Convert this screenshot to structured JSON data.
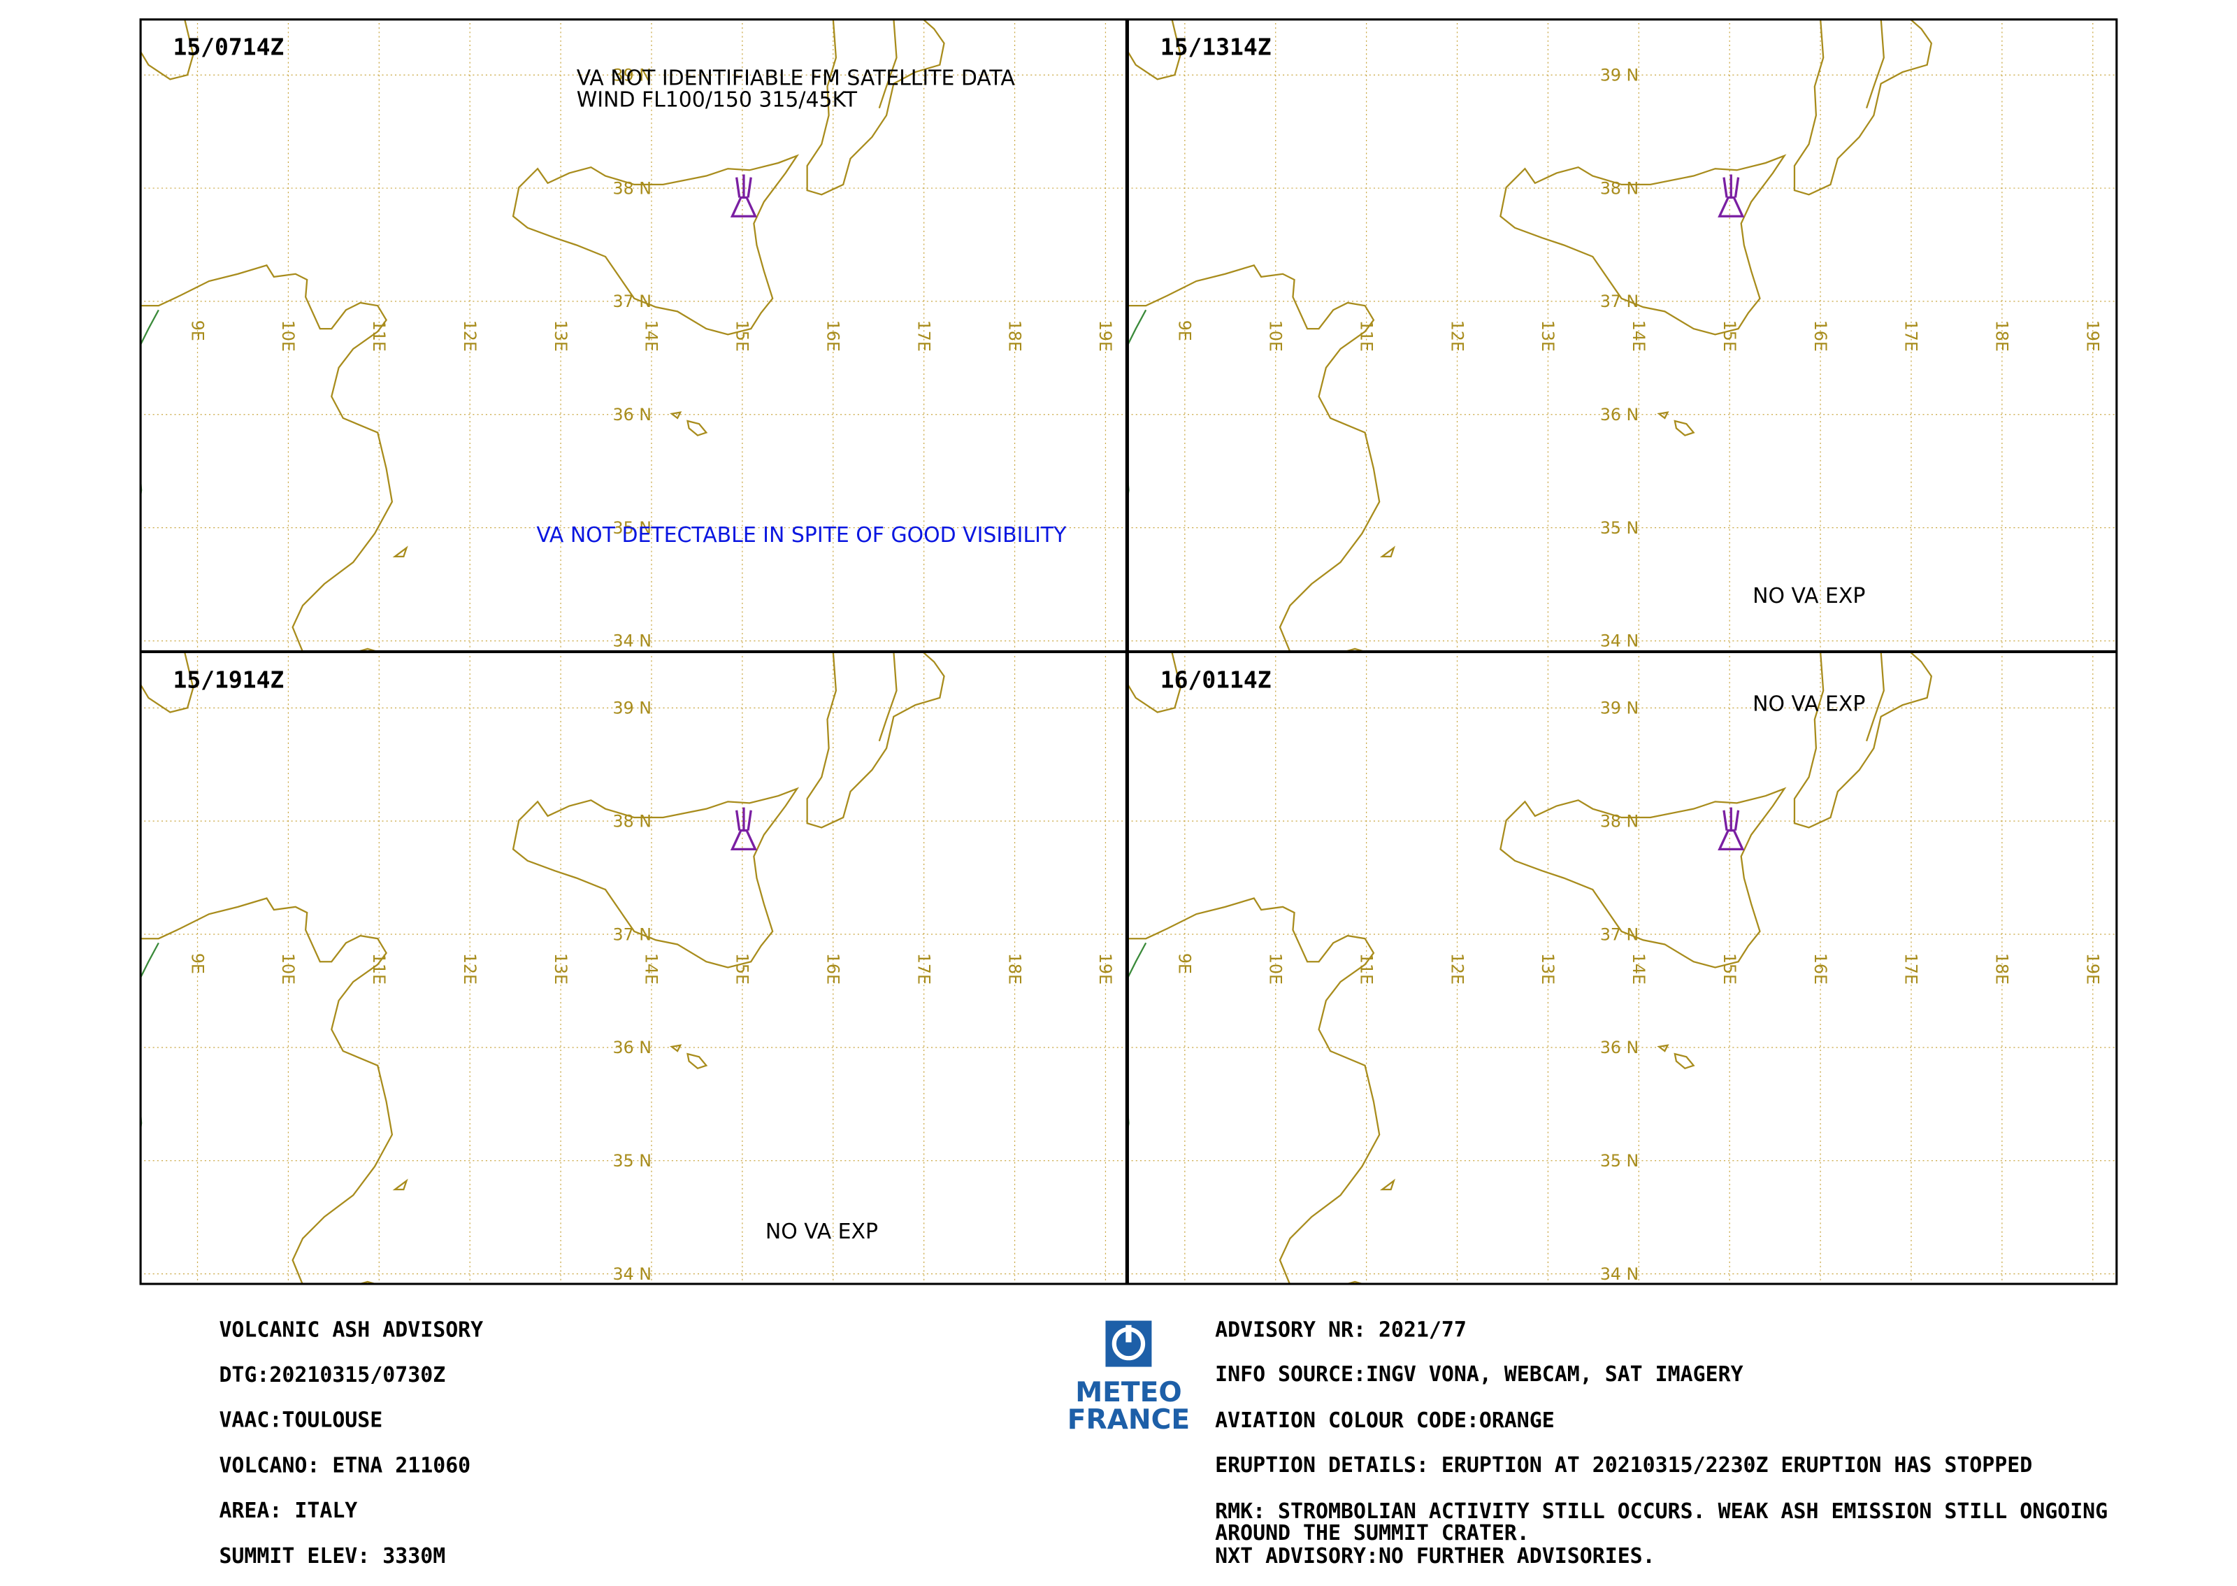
{
  "panels": [
    {
      "time": "15/0714Z",
      "notes": [
        "VA NOT IDENTIFIABLE FM SATELLITE DATA",
        "WIND FL100/150 315/45KT",
        "VA NOT DETECTABLE IN SPITE OF GOOD VISIBILITY"
      ]
    },
    {
      "time": "15/1314Z",
      "notes": [
        "NO VA EXP"
      ]
    },
    {
      "time": "15/1914Z",
      "notes": [
        "NO VA EXP"
      ]
    },
    {
      "time": "16/0114Z",
      "notes": [
        "NO VA EXP"
      ]
    }
  ],
  "grid": {
    "lat_labels": [
      "39 N",
      "38 N",
      "37 N",
      "36 N",
      "35 N",
      "34 N"
    ],
    "lon_labels": [
      "9E",
      "10E",
      "11E",
      "12E",
      "13E",
      "14E",
      "15E",
      "16E",
      "17E",
      "18E",
      "19E"
    ]
  },
  "advisory": {
    "left": [
      "VOLCANIC ASH ADVISORY",
      "DTG:20210315/0730Z",
      "VAAC:TOULOUSE",
      "VOLCANO: ETNA 211060",
      "AREA: ITALY",
      "SUMMIT ELEV: 3330M"
    ],
    "right": [
      "ADVISORY NR: 2021/77",
      "INFO SOURCE:INGV VONA, WEBCAM, SAT IMAGERY",
      "AVIATION COLOUR CODE:ORANGE",
      "ERUPTION DETAILS: ERUPTION AT 20210315/2230Z ERUPTION HAS STOPPED",
      "RMK: STROMBOLIAN ACTIVITY STILL OCCURS. WEAK ASH EMISSION STILL ONGOING",
      "AROUND THE SUMMIT CRATER.",
      "NXT ADVISORY:NO FURTHER ADVISORIES."
    ]
  },
  "logo": [
    "METEO",
    "FRANCE"
  ]
}
